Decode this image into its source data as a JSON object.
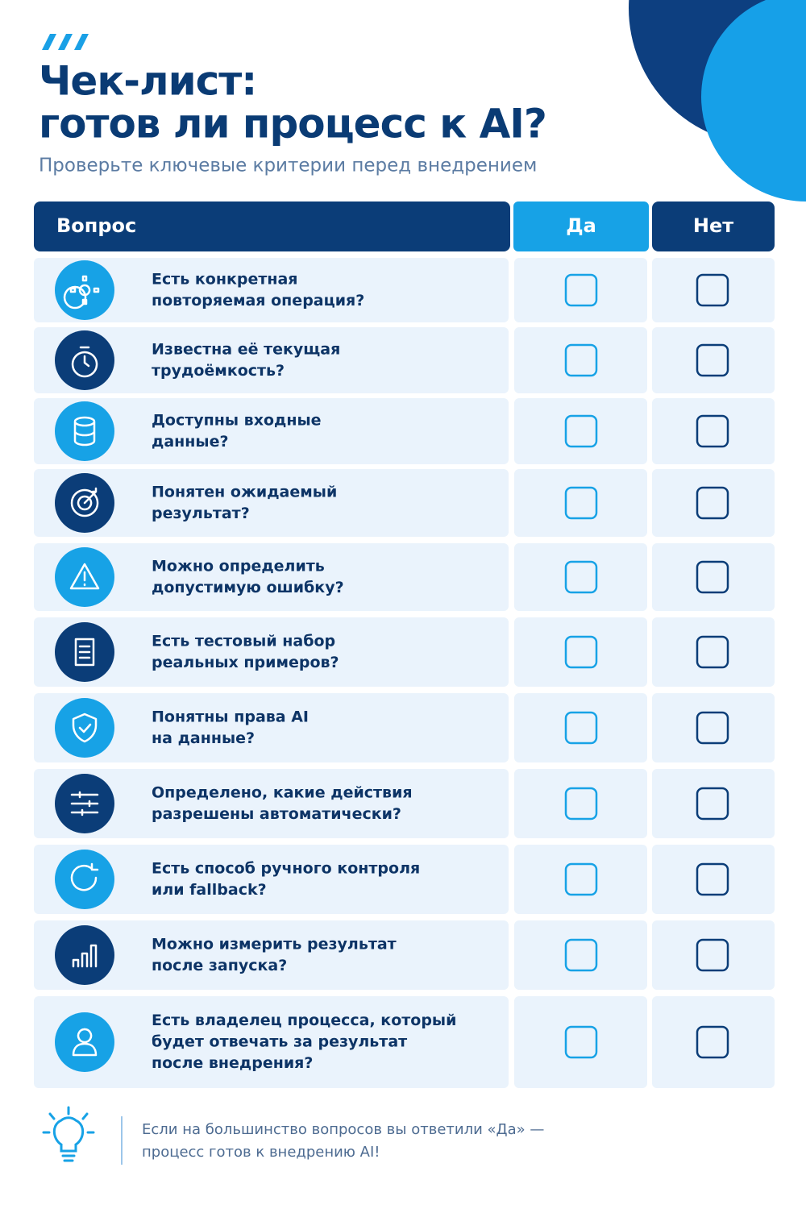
{
  "header": {
    "title_lines": [
      "Чек-лист:",
      "готов ли процесс к AI?"
    ],
    "subtitle": "Проверьте ключевые критерии перед внедрением"
  },
  "table": {
    "columns": [
      "Вопрос",
      "Да",
      "Нет"
    ],
    "rows": [
      {
        "lines": [
          "Есть конкретная",
          "повторяемая операция?"
        ]
      },
      {
        "lines": [
          "Известна её текущая",
          "трудоёмкость?"
        ]
      },
      {
        "lines": [
          "Доступны входные",
          "данные?"
        ]
      },
      {
        "lines": [
          "Понятен ожидаемый",
          "результат?"
        ]
      },
      {
        "lines": [
          "Можно определить",
          "допустимую ошибку?"
        ]
      },
      {
        "lines": [
          "Есть тестовый набор",
          "реальных примеров?"
        ]
      },
      {
        "lines": [
          "Понятны права AI",
          "на данные?"
        ]
      },
      {
        "lines": [
          "Определено, какие действия",
          "разрешены автоматически?"
        ]
      },
      {
        "lines": [
          "Есть способ ручного контроля",
          "или fallback?"
        ]
      },
      {
        "lines": [
          "Можно измерить результат",
          "после запуска?"
        ]
      },
      {
        "lines": [
          "Есть владелец процесса, который",
          "будет отвечать за результат",
          "после внедрения?"
        ]
      }
    ]
  },
  "footer": {
    "lines": [
      "Если на большинство вопросов вы ответили «Да» —",
      "процесс готов к внедрению AI!"
    ]
  }
}
